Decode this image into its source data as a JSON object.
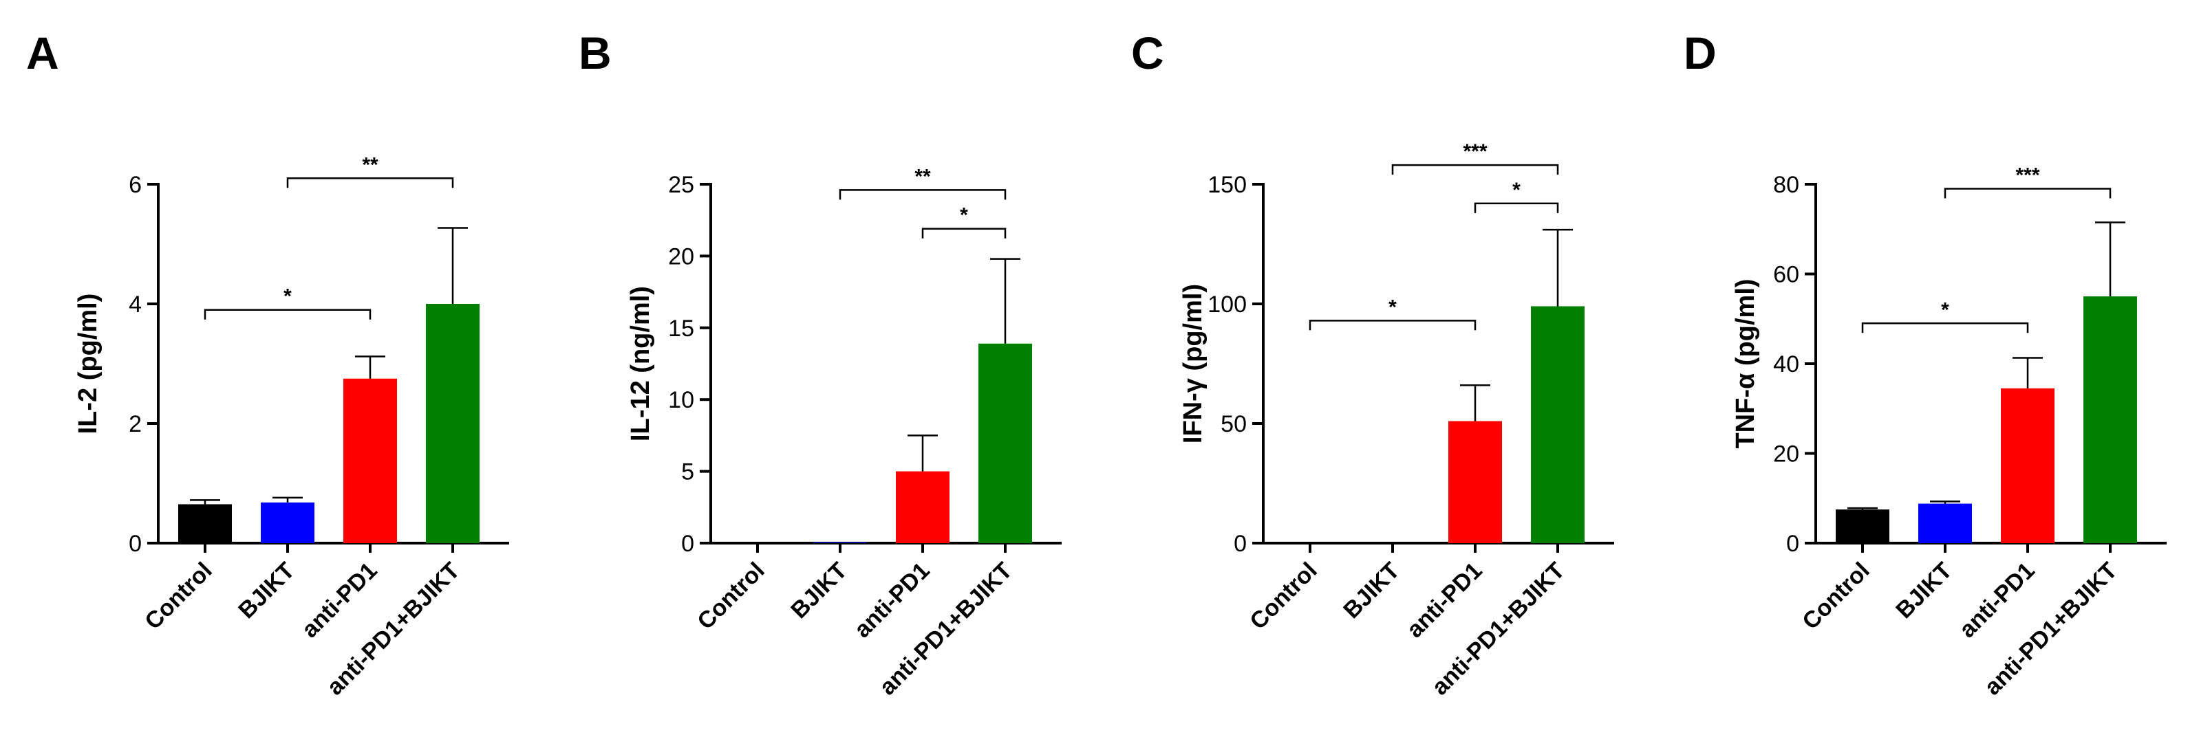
{
  "chart_data": [
    {
      "type": "bar",
      "panel": "A",
      "ylabel": "IL-2 (pg/ml)",
      "ylim": [
        0,
        6
      ],
      "yticks": [
        0,
        2,
        4,
        6
      ],
      "yticks_text": [
        "0",
        "2",
        "4",
        "6"
      ],
      "categories": [
        "Control",
        "BJIKT",
        "anti-PD1",
        "anti-PD1+BJIKT"
      ],
      "values": [
        0.65,
        0.68,
        2.75,
        4.0
      ],
      "errors": [
        0.07,
        0.08,
        0.37,
        1.27
      ],
      "colors": [
        "#000000",
        "#0000ff",
        "#ff0000",
        "#008000"
      ],
      "significance": [
        {
          "from": 0,
          "to": 2,
          "label": "*",
          "level": 3.9
        },
        {
          "from": 1,
          "to": 3,
          "label": "**",
          "level": 6.1
        }
      ]
    },
    {
      "type": "bar",
      "panel": "B",
      "ylabel": "IL-12 (ng/ml)",
      "ylim": [
        0,
        25
      ],
      "yticks": [
        0,
        5,
        10,
        15,
        20,
        25
      ],
      "yticks_text": [
        "0",
        "5",
        "10",
        "15",
        "20",
        "25"
      ],
      "categories": [
        "Control",
        "BJIKT",
        "anti-PD1",
        "anti-PD1+BJIKT"
      ],
      "values": [
        0,
        0.05,
        5.0,
        13.9
      ],
      "errors": [
        0,
        0,
        2.5,
        5.9
      ],
      "colors": [
        "#000000",
        "#0000ff",
        "#ff0000",
        "#008000"
      ],
      "significance": [
        {
          "from": 1,
          "to": 3,
          "label": "**",
          "level": 24.6
        },
        {
          "from": 2,
          "to": 3,
          "label": "*",
          "level": 21.9
        }
      ]
    },
    {
      "type": "bar",
      "panel": "C",
      "ylabel": "IFN-γ (pg/ml)",
      "ylim": [
        0,
        150
      ],
      "yticks": [
        0,
        50,
        100,
        150
      ],
      "yticks_text": [
        "0",
        "50",
        "100",
        "150"
      ],
      "categories": [
        "Control",
        "BJIKT",
        "anti-PD1",
        "anti-PD1+BJIKT"
      ],
      "values": [
        0,
        0,
        51,
        99
      ],
      "errors": [
        0,
        0,
        15,
        32
      ],
      "colors": [
        "#000000",
        "#0000ff",
        "#ff0000",
        "#008000"
      ],
      "significance": [
        {
          "from": 0,
          "to": 2,
          "label": "*",
          "level": 93
        },
        {
          "from": 1,
          "to": 3,
          "label": "***",
          "level": 158
        },
        {
          "from": 2,
          "to": 3,
          "label": "*",
          "level": 142
        }
      ]
    },
    {
      "type": "bar",
      "panel": "D",
      "ylabel": "TNF-α (pg/ml)",
      "ylim": [
        0,
        80
      ],
      "yticks": [
        0,
        20,
        40,
        60,
        80
      ],
      "yticks_text": [
        "0",
        "20",
        "40",
        "60",
        "80"
      ],
      "categories": [
        "Control",
        "BJIKT",
        "anti-PD1",
        "anti-PD1+BJIKT"
      ],
      "values": [
        7.5,
        8.8,
        34.5,
        55.0
      ],
      "errors": [
        0.3,
        0.5,
        6.8,
        16.5
      ],
      "colors": [
        "#000000",
        "#0000ff",
        "#ff0000",
        "#008000"
      ],
      "significance": [
        {
          "from": 0,
          "to": 2,
          "label": "*",
          "level": 49
        },
        {
          "from": 1,
          "to": 3,
          "label": "***",
          "level": 79
        }
      ]
    }
  ]
}
